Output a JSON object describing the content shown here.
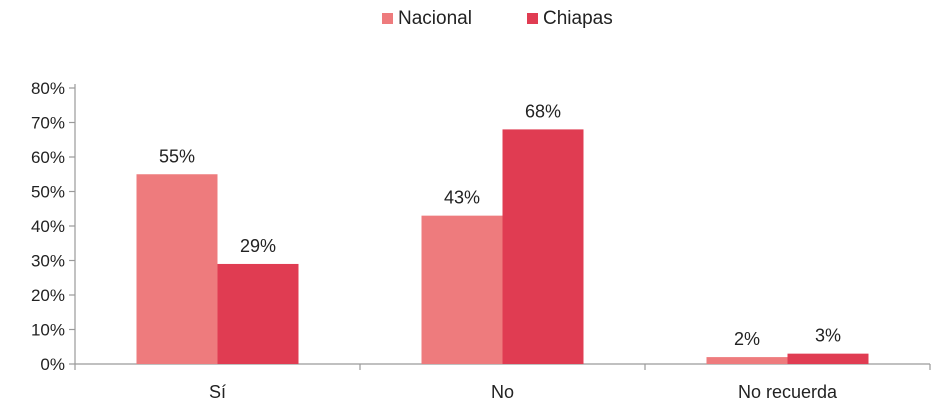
{
  "chart_data": {
    "type": "bar",
    "categories": [
      "Sí",
      "No",
      "No recuerda"
    ],
    "series": [
      {
        "name": "Nacional",
        "values": [
          55,
          43,
          2
        ],
        "labels": [
          "55%",
          "43%",
          "2%"
        ],
        "color": "#ee7b7d"
      },
      {
        "name": "Chiapas",
        "values": [
          29,
          68,
          3
        ],
        "labels": [
          "29%",
          "68%",
          "3%"
        ],
        "color": "#e03c52"
      }
    ],
    "y_ticks": [
      "0%",
      "10%",
      "20%",
      "30%",
      "40%",
      "50%",
      "60%",
      "70%",
      "80%"
    ],
    "ylim": [
      0,
      80
    ],
    "grid": false,
    "legend_position": "top-center",
    "axis_color": "#9a9a9a"
  }
}
